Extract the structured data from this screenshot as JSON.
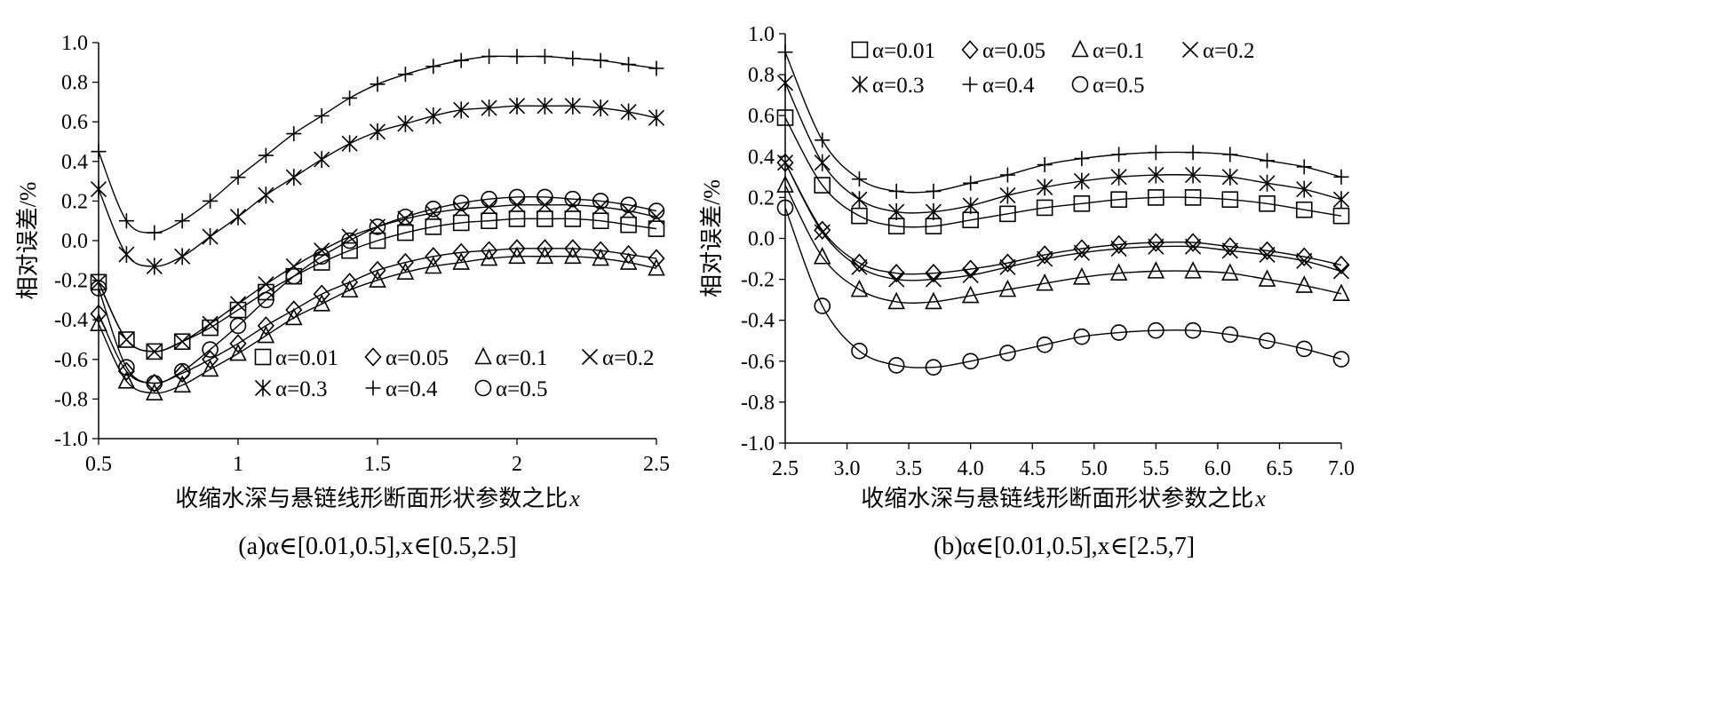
{
  "chart_data": [
    {
      "type": "line",
      "panel": "a",
      "caption": "(a)α∈[0.01,0.5],x∈[0.5,2.5]",
      "xlabel": "收缩水深与悬链线形断面形状参数之比",
      "xlabel_var": "x",
      "ylabel": "相对误差/%",
      "xlim": [
        0.5,
        2.5
      ],
      "ylim": [
        -1.0,
        1.0
      ],
      "x_ticks": [
        "0.5",
        "1",
        "1.5",
        "2",
        "2.5"
      ],
      "y_ticks": [
        "-1.0",
        "-0.8",
        "-0.6",
        "-0.4",
        "-0.2",
        "0.0",
        "0.2",
        "0.4",
        "0.6",
        "0.8",
        "1.0"
      ],
      "grid": false,
      "legend_position": "bottom-right",
      "x": [
        0.5,
        0.6,
        0.7,
        0.8,
        0.9,
        1.0,
        1.1,
        1.2,
        1.3,
        1.4,
        1.5,
        1.6,
        1.7,
        1.8,
        1.9,
        2.0,
        2.1,
        2.2,
        2.3,
        2.4,
        2.5
      ],
      "series": [
        {
          "name": "α=0.01",
          "marker": "square",
          "values": [
            -0.21,
            -0.5,
            -0.56,
            -0.51,
            -0.44,
            -0.35,
            -0.26,
            -0.18,
            -0.11,
            -0.05,
            0.0,
            0.04,
            0.07,
            0.09,
            0.1,
            0.11,
            0.11,
            0.11,
            0.1,
            0.08,
            0.06
          ]
        },
        {
          "name": "α=0.05",
          "marker": "diamond",
          "values": [
            -0.37,
            -0.66,
            -0.72,
            -0.67,
            -0.6,
            -0.52,
            -0.43,
            -0.35,
            -0.27,
            -0.21,
            -0.15,
            -0.11,
            -0.08,
            -0.06,
            -0.05,
            -0.04,
            -0.04,
            -0.04,
            -0.05,
            -0.07,
            -0.09
          ]
        },
        {
          "name": "α=0.1",
          "marker": "triangle",
          "values": [
            -0.42,
            -0.71,
            -0.77,
            -0.73,
            -0.65,
            -0.57,
            -0.48,
            -0.39,
            -0.32,
            -0.25,
            -0.2,
            -0.16,
            -0.13,
            -0.11,
            -0.09,
            -0.08,
            -0.08,
            -0.08,
            -0.09,
            -0.11,
            -0.14
          ]
        },
        {
          "name": "α=0.2",
          "marker": "x",
          "values": [
            -0.21,
            -0.5,
            -0.56,
            -0.51,
            -0.42,
            -0.32,
            -0.22,
            -0.13,
            -0.05,
            0.02,
            0.07,
            0.11,
            0.14,
            0.16,
            0.17,
            0.18,
            0.18,
            0.18,
            0.17,
            0.15,
            0.12
          ]
        },
        {
          "name": "α=0.3",
          "marker": "asterisk",
          "values": [
            0.26,
            -0.07,
            -0.13,
            -0.08,
            0.02,
            0.12,
            0.23,
            0.32,
            0.41,
            0.49,
            0.55,
            0.59,
            0.63,
            0.66,
            0.67,
            0.68,
            0.68,
            0.68,
            0.67,
            0.65,
            0.62
          ]
        },
        {
          "name": "α=0.4",
          "marker": "plus",
          "values": [
            0.45,
            0.1,
            0.04,
            0.1,
            0.2,
            0.32,
            0.43,
            0.54,
            0.63,
            0.72,
            0.79,
            0.84,
            0.88,
            0.91,
            0.93,
            0.93,
            0.93,
            0.92,
            0.91,
            0.89,
            0.87
          ]
        },
        {
          "name": "α=0.5",
          "marker": "circle",
          "values": [
            -0.24,
            -0.64,
            -0.72,
            -0.66,
            -0.55,
            -0.43,
            -0.3,
            -0.18,
            -0.08,
            0.0,
            0.07,
            0.12,
            0.16,
            0.19,
            0.21,
            0.22,
            0.22,
            0.21,
            0.2,
            0.18,
            0.15
          ]
        }
      ]
    },
    {
      "type": "line",
      "panel": "b",
      "caption": "(b)α∈[0.01,0.5],x∈[2.5,7]",
      "xlabel": "收缩水深与悬链线形断面形状参数之比",
      "xlabel_var": "x",
      "ylabel": "相对误差/%",
      "xlim": [
        2.5,
        7.0
      ],
      "ylim": [
        -1.0,
        1.0
      ],
      "x_ticks": [
        "2.5",
        "3.0",
        "3.5",
        "4.0",
        "4.5",
        "5.0",
        "5.5",
        "6.0",
        "6.5",
        "7.0"
      ],
      "y_ticks": [
        "-1.0",
        "-0.8",
        "-0.6",
        "-0.4",
        "-0.2",
        "0.0",
        "0.2",
        "0.4",
        "0.6",
        "0.8",
        "1.0"
      ],
      "grid": false,
      "legend_position": "top",
      "x": [
        2.5,
        2.8,
        3.1,
        3.4,
        3.7,
        4.0,
        4.3,
        4.6,
        4.9,
        5.2,
        5.5,
        5.8,
        6.1,
        6.4,
        6.7,
        7.0
      ],
      "series": [
        {
          "name": "α=0.01",
          "marker": "square",
          "values": [
            0.59,
            0.26,
            0.11,
            0.06,
            0.06,
            0.09,
            0.12,
            0.15,
            0.17,
            0.19,
            0.2,
            0.2,
            0.19,
            0.17,
            0.14,
            0.11
          ]
        },
        {
          "name": "α=0.05",
          "marker": "diamond",
          "values": [
            0.37,
            0.04,
            -0.12,
            -0.17,
            -0.17,
            -0.15,
            -0.12,
            -0.08,
            -0.05,
            -0.03,
            -0.02,
            -0.02,
            -0.04,
            -0.06,
            -0.09,
            -0.13
          ]
        },
        {
          "name": "α=0.1",
          "marker": "triangle",
          "values": [
            0.26,
            -0.09,
            -0.25,
            -0.31,
            -0.31,
            -0.28,
            -0.25,
            -0.22,
            -0.19,
            -0.17,
            -0.16,
            -0.16,
            -0.17,
            -0.2,
            -0.23,
            -0.27
          ]
        },
        {
          "name": "α=0.2",
          "marker": "x",
          "values": [
            0.37,
            0.03,
            -0.14,
            -0.2,
            -0.2,
            -0.18,
            -0.14,
            -0.1,
            -0.07,
            -0.05,
            -0.04,
            -0.04,
            -0.06,
            -0.08,
            -0.11,
            -0.16
          ]
        },
        {
          "name": "α=0.3",
          "marker": "asterisk",
          "values": [
            0.76,
            0.37,
            0.19,
            0.13,
            0.13,
            0.16,
            0.21,
            0.25,
            0.28,
            0.3,
            0.31,
            0.31,
            0.3,
            0.27,
            0.24,
            0.19
          ]
        },
        {
          "name": "α=0.4",
          "marker": "plus",
          "values": [
            0.91,
            0.48,
            0.29,
            0.23,
            0.23,
            0.27,
            0.31,
            0.36,
            0.39,
            0.41,
            0.42,
            0.42,
            0.41,
            0.38,
            0.35,
            0.3
          ]
        },
        {
          "name": "α=0.5",
          "marker": "circle",
          "values": [
            0.15,
            -0.33,
            -0.55,
            -0.62,
            -0.63,
            -0.6,
            -0.56,
            -0.52,
            -0.48,
            -0.46,
            -0.45,
            -0.45,
            -0.47,
            -0.5,
            -0.54,
            -0.59
          ]
        }
      ]
    }
  ]
}
